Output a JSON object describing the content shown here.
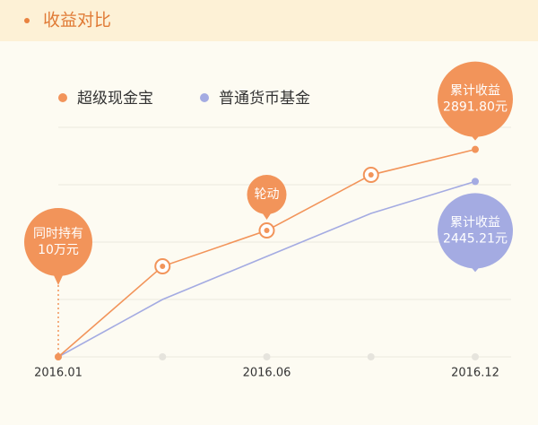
{
  "chart_data": {
    "type": "line",
    "title": "收益对比",
    "categories": [
      "2016.01",
      null,
      "2016.06",
      null,
      "2016.12"
    ],
    "series": [
      {
        "name": "超级现金宝",
        "color": "#f2945a",
        "values": [
          0,
          1262,
          1762,
          2537,
          2891.8
        ],
        "value_labels": [
          null,
          null,
          null,
          null,
          "2891.80元"
        ],
        "end_label": "累计收益"
      },
      {
        "name": "普通货币基金",
        "color": "#a4abe2",
        "values": [
          0,
          800,
          1400,
          2000,
          2445.21
        ],
        "value_labels": [
          null,
          null,
          null,
          null,
          "2445.21元"
        ],
        "end_label": "累计收益"
      }
    ],
    "ylim": [
      0,
      3200
    ],
    "annotations": [
      {
        "lines": [
          "同时持有",
          "10万元"
        ],
        "at": "2016.01"
      },
      {
        "lines": [
          "轮动"
        ],
        "at": "2016.06"
      }
    ]
  }
}
